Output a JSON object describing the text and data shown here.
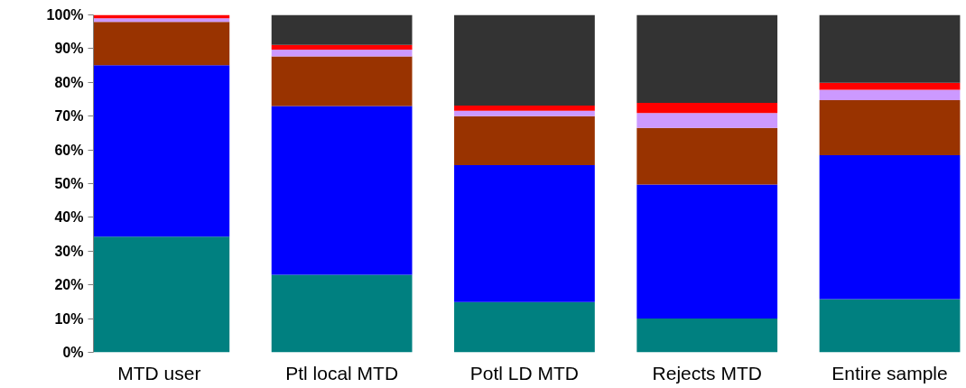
{
  "chart_data": {
    "type": "bar",
    "stacked": true,
    "categories": [
      "MTD user",
      "Ptl local MTD",
      "Potl LD MTD",
      "Rejects MTD",
      "Entire sample"
    ],
    "series": [
      {
        "color": "#008080",
        "values": [
          34.3,
          23.0,
          14.9,
          10.0,
          15.8
        ]
      },
      {
        "color": "#0000ff",
        "values": [
          50.8,
          50.0,
          40.6,
          39.7,
          42.6
        ]
      },
      {
        "color": "#993300",
        "values": [
          12.8,
          14.7,
          14.5,
          16.8,
          16.3
        ]
      },
      {
        "color": "#cc99ff",
        "values": [
          1.1,
          2.0,
          1.6,
          4.4,
          3.1
        ]
      },
      {
        "color": "#ff0000",
        "values": [
          1.0,
          1.4,
          1.5,
          3.0,
          2.1
        ]
      },
      {
        "color": "#333333",
        "values": [
          0,
          8.9,
          26.9,
          26.1,
          20.1
        ]
      }
    ],
    "ylim": [
      0,
      100
    ],
    "yticks": [
      {
        "value": 0,
        "label": "0%"
      },
      {
        "value": 10,
        "label": "10%"
      },
      {
        "value": 20,
        "label": "20%"
      },
      {
        "value": 30,
        "label": "30%"
      },
      {
        "value": 40,
        "label": "40%"
      },
      {
        "value": 50,
        "label": "50%"
      },
      {
        "value": 60,
        "label": "60%"
      },
      {
        "value": 70,
        "label": "70%"
      },
      {
        "value": 80,
        "label": "80%"
      },
      {
        "value": 90,
        "label": "90%"
      },
      {
        "value": 100,
        "label": "100%"
      }
    ],
    "grid": false
  }
}
